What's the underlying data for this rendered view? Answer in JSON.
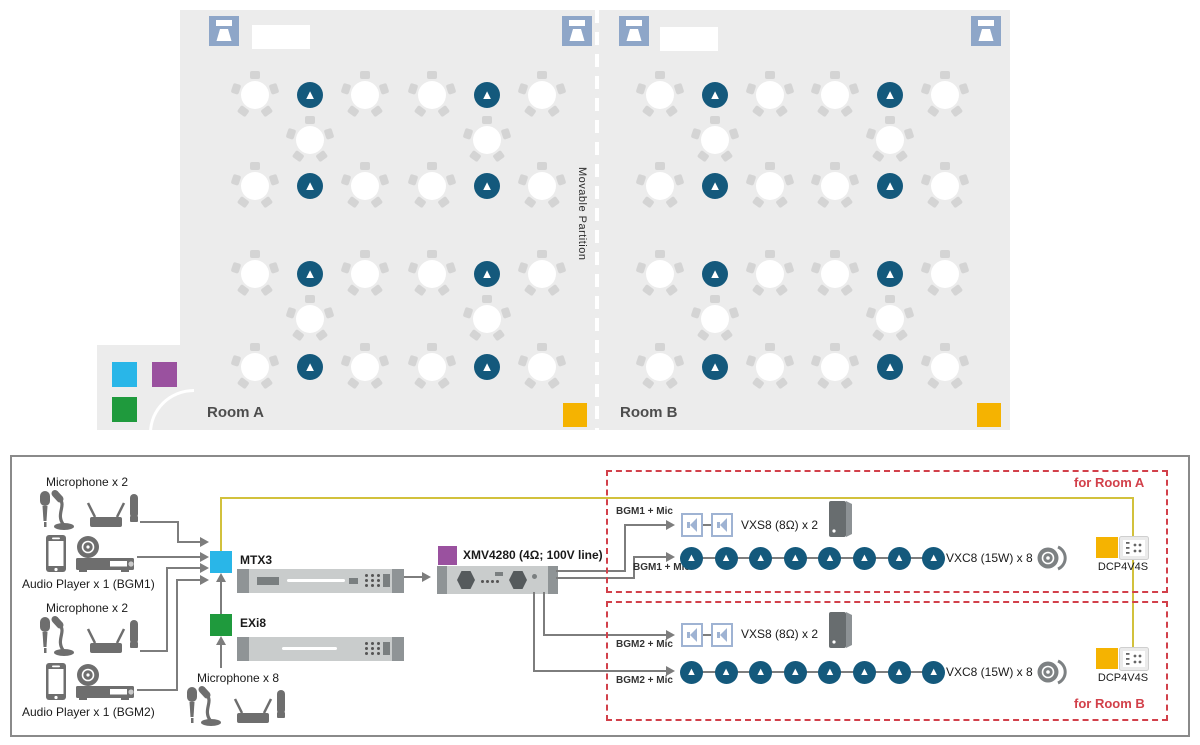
{
  "colors": {
    "floor_bg": "#ECECEC",
    "ceiling_speaker": "#14597C",
    "wall_speaker": "#8EA6C8",
    "mtx3": "#29B6E8",
    "xmv4280": "#9A519F",
    "exi8": "#1F9A3D",
    "dcp4v4s": "#F5B301",
    "zone_red": "#D2404A",
    "signal_wire": "#7D7D7D",
    "dcp_wire": "#D2C13C"
  },
  "floor_plan": {
    "room_a_label": "Room A",
    "room_b_label": "Room B",
    "partition_label": "Movable Partition"
  },
  "system_diagram": {
    "sources": {
      "mic_group_1_label": "Microphone x 2",
      "audio_player_1_label": "Audio Player x 1 (BGM1)",
      "mic_group_2_label": "Microphone x 2",
      "audio_player_2_label": "Audio Player x 1 (BGM2)",
      "mic_group_8_label": "Microphone x 8"
    },
    "devices": {
      "mtx3_label": "MTX3",
      "exi8_label": "EXi8",
      "xmv_label": "XMV4280 (4Ω; 100V line)"
    },
    "room_a": {
      "zone_label": "for Room A",
      "line1_label": "BGM1 + Mic",
      "line2_label": "BGM1 + Mic",
      "vxs8_label": "VXS8 (8Ω) x 2",
      "vxc8_label": "VXC8 (15W) x 8",
      "dcp_label": "DCP4V4S"
    },
    "room_b": {
      "zone_label": "for Room B",
      "line1_label": "BGM2 + Mic",
      "line2_label": "BGM2 + Mic",
      "vxs8_label": "VXS8 (8Ω) x 2",
      "vxc8_label": "VXC8 (15W) x 8",
      "dcp_label": "DCP4V4S"
    }
  }
}
